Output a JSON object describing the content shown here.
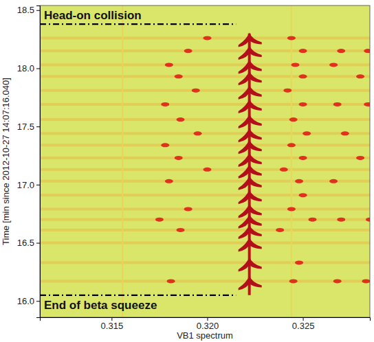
{
  "chart_data": {
    "type": "spectrogram",
    "x_label": "VB1 spectrum",
    "y_label": "Time [min since 2012-10-27 14:07:16.040]",
    "xlim": [
      0.31125,
      0.3285
    ],
    "ylim": [
      15.86,
      18.54
    ],
    "xticks": [
      0.315,
      {
        "value": 0.32,
        "label": "0.320"
      },
      0.325
    ],
    "yticks": [
      {
        "value": 16,
        "label": "16.0"
      },
      16.5,
      {
        "value": 17,
        "label": "17.0"
      },
      17.5,
      {
        "value": 18,
        "label": "18.0"
      },
      18.5
    ],
    "lines": [
      {
        "x": 0.31557,
        "y0": 15.86,
        "y1": 18.54,
        "color": "#e8d45a"
      },
      {
        "x": 0.3244,
        "y0": 15.86,
        "y1": 18.54,
        "color": "#e6d85e"
      },
      {
        "x": 0.3222,
        "y0": 16.05,
        "y1": 18.3,
        "color": "#c0101c"
      }
    ],
    "bursts": [
      {
        "time": 16.17,
        "tunes": [
          0.3181,
          0.3222,
          0.3245,
          0.3268,
          0.3283
        ]
      },
      {
        "time": 16.33,
        "tunes": [
          0.3222,
          0.3248
        ]
      },
      {
        "time": 16.5,
        "tunes": [
          0.3222
        ]
      },
      {
        "time": 16.61,
        "tunes": [
          0.3186,
          0.3222,
          0.3238
        ]
      },
      {
        "time": 16.7,
        "tunes": [
          0.3175,
          0.3222,
          0.3255,
          0.327,
          0.3285
        ]
      },
      {
        "time": 16.79,
        "tunes": [
          0.319,
          0.3222,
          0.3244
        ]
      },
      {
        "time": 16.91,
        "tunes": [
          0.3222,
          0.325
        ]
      },
      {
        "time": 17.03,
        "tunes": [
          0.318,
          0.3222,
          0.3248,
          0.3266
        ]
      },
      {
        "time": 17.13,
        "tunes": [
          0.32,
          0.3222,
          0.324
        ]
      },
      {
        "time": 17.23,
        "tunes": [
          0.3185,
          0.3222,
          0.325,
          0.328
        ]
      },
      {
        "time": 17.34,
        "tunes": [
          0.3178,
          0.3222,
          0.3244
        ]
      },
      {
        "time": 17.44,
        "tunes": [
          0.3195,
          0.3222,
          0.3252,
          0.3272
        ]
      },
      {
        "time": 17.56,
        "tunes": [
          0.3186,
          0.3222,
          0.3245
        ]
      },
      {
        "time": 17.69,
        "tunes": [
          0.3178,
          0.3222,
          0.325,
          0.3268,
          0.3284
        ]
      },
      {
        "time": 17.81,
        "tunes": [
          0.3194,
          0.3222,
          0.3242
        ]
      },
      {
        "time": 17.93,
        "tunes": [
          0.3185,
          0.3222,
          0.325,
          0.328
        ]
      },
      {
        "time": 18.03,
        "tunes": [
          0.318,
          0.3222,
          0.3246,
          0.3266
        ]
      },
      {
        "time": 18.15,
        "tunes": [
          0.319,
          0.3222,
          0.325,
          0.327,
          0.3284
        ]
      },
      {
        "time": 18.26,
        "tunes": [
          0.32,
          0.3222,
          0.3244
        ]
      }
    ],
    "annotations": [
      {
        "text": "Head-on collision",
        "y": 18.38,
        "x0": 0.31125,
        "x1": 0.3215
      },
      {
        "text": "End of beta squeeze",
        "y": 16.05,
        "x0": 0.31125,
        "x1": 0.3215
      }
    ]
  }
}
